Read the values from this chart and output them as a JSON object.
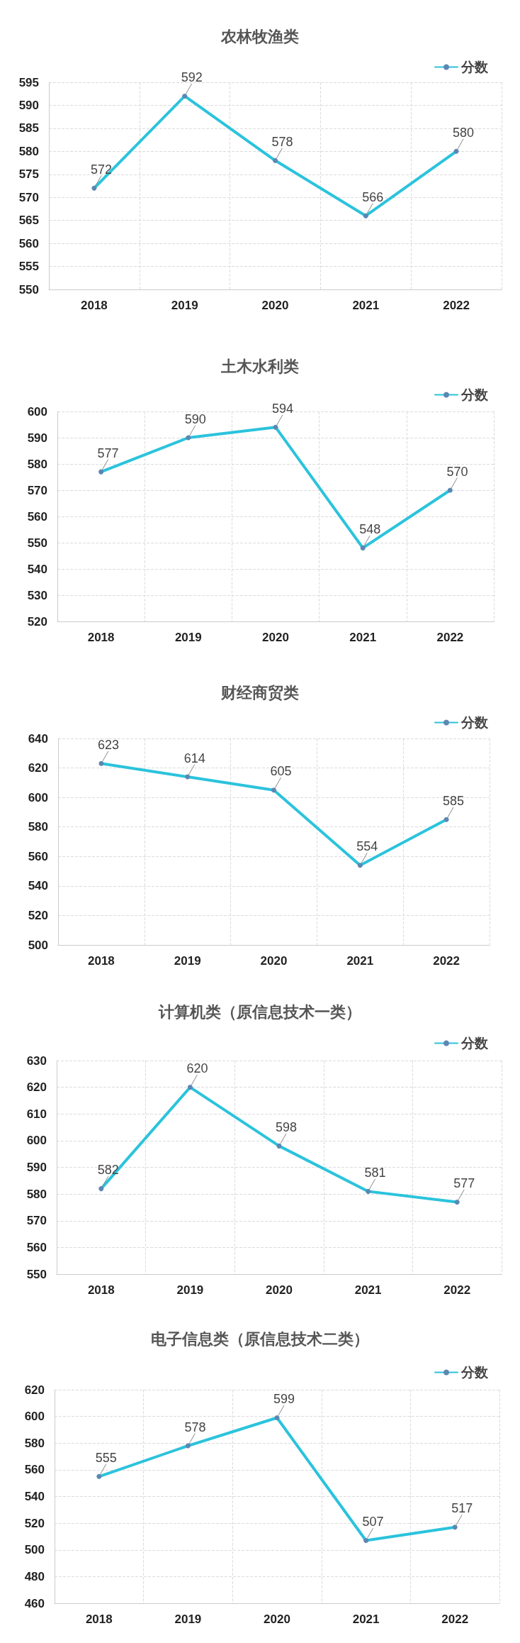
{
  "chart_data": [
    {
      "type": "line",
      "title": "农林牧渔类",
      "categories": [
        "2018",
        "2019",
        "2020",
        "2021",
        "2022"
      ],
      "series": [
        {
          "name": "分数",
          "color": "#2bc3dc",
          "values": [
            572,
            592,
            578,
            566,
            580
          ]
        }
      ],
      "ylim": [
        550,
        595
      ],
      "yticks": [
        550,
        555,
        560,
        565,
        570,
        575,
        580,
        585,
        590,
        595
      ],
      "grid": true,
      "legend": "top right",
      "marker": "circle",
      "line_style": "solid",
      "data_labels": true
    },
    {
      "type": "line",
      "title": "土木水利类",
      "categories": [
        "2018",
        "2019",
        "2020",
        "2021",
        "2022"
      ],
      "series": [
        {
          "name": "分数",
          "color": "#2bc3dc",
          "values": [
            577,
            590,
            594,
            548,
            570
          ]
        }
      ],
      "ylim": [
        520,
        600
      ],
      "yticks": [
        520,
        530,
        540,
        550,
        560,
        570,
        580,
        590,
        600
      ],
      "grid": true,
      "legend": "top right",
      "marker": "circle",
      "line_style": "solid",
      "data_labels": true
    },
    {
      "type": "line",
      "title": "财经商贸类",
      "categories": [
        "2018",
        "2019",
        "2020",
        "2021",
        "2022"
      ],
      "series": [
        {
          "name": "分数",
          "color": "#2bc3dc",
          "values": [
            623,
            614,
            605,
            554,
            585
          ]
        }
      ],
      "ylim": [
        500,
        640
      ],
      "yticks": [
        500,
        520,
        540,
        560,
        580,
        600,
        620,
        640
      ],
      "grid": true,
      "legend": "top right",
      "marker": "circle",
      "line_style": "solid",
      "data_labels": true
    },
    {
      "type": "line",
      "title": "计算机类（原信息技术一类）",
      "categories": [
        "2018",
        "2019",
        "2020",
        "2021",
        "2022"
      ],
      "series": [
        {
          "name": "分数",
          "color": "#2bc3dc",
          "values": [
            582,
            620,
            598,
            581,
            577
          ]
        }
      ],
      "ylim": [
        550,
        630
      ],
      "yticks": [
        550,
        560,
        570,
        580,
        590,
        600,
        610,
        620,
        630
      ],
      "grid": true,
      "legend": "top right",
      "marker": "circle",
      "line_style": "solid",
      "data_labels": true
    },
    {
      "type": "line",
      "title": "电子信息类（原信息技术二类）",
      "categories": [
        "2018",
        "2019",
        "2020",
        "2021",
        "2022"
      ],
      "series": [
        {
          "name": "分数",
          "color": "#2bc3dc",
          "values": [
            555,
            578,
            599,
            507,
            517
          ]
        }
      ],
      "ylim": [
        460,
        620
      ],
      "yticks": [
        460,
        480,
        500,
        520,
        540,
        560,
        580,
        600,
        620
      ],
      "grid": true,
      "legend": "top right",
      "marker": "circle",
      "line_style": "solid",
      "data_labels": true
    }
  ]
}
